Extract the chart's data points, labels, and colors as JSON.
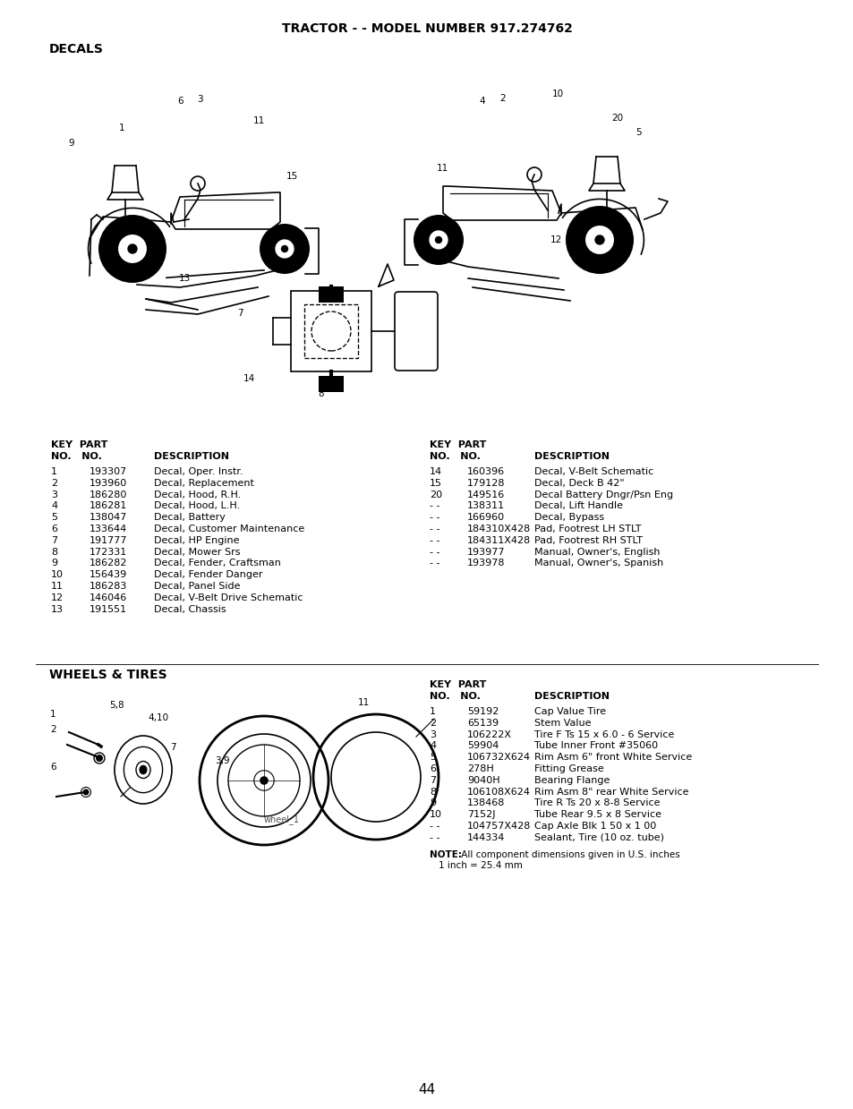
{
  "title": "TRACTOR - - MODEL NUMBER 917.274762",
  "section1": "DECALS",
  "section2": "WHEELS & TIRES",
  "bg_color": "#ffffff",
  "decals_left": [
    [
      "1",
      "193307",
      "Decal, Oper. Instr."
    ],
    [
      "2",
      "193960",
      "Decal, Replacement"
    ],
    [
      "3",
      "186280",
      "Decal, Hood, R.H."
    ],
    [
      "4",
      "186281",
      "Decal, Hood, L.H."
    ],
    [
      "5",
      "138047",
      "Decal, Battery"
    ],
    [
      "6",
      "133644",
      "Decal, Customer Maintenance"
    ],
    [
      "7",
      "191777",
      "Decal, HP Engine"
    ],
    [
      "8",
      "172331",
      "Decal, Mower Srs"
    ],
    [
      "9",
      "186282",
      "Decal, Fender, Craftsman"
    ],
    [
      "10",
      "156439",
      "Decal, Fender Danger"
    ],
    [
      "11",
      "186283",
      "Decal, Panel Side"
    ],
    [
      "12",
      "146046",
      "Decal, V-Belt Drive Schematic"
    ],
    [
      "13",
      "191551",
      "Decal, Chassis"
    ]
  ],
  "decals_right": [
    [
      "14",
      "160396",
      "Decal, V-Belt Schematic"
    ],
    [
      "15",
      "179128",
      "Decal, Deck B 42\""
    ],
    [
      "20",
      "149516",
      "Decal Battery Dngr/Psn Eng"
    ],
    [
      "- -",
      "138311",
      "Decal, Lift Handle"
    ],
    [
      "- -",
      "166960",
      "Decal, Bypass"
    ],
    [
      "- -",
      "184310X428",
      "Pad, Footrest LH STLT"
    ],
    [
      "- -",
      "184311X428",
      "Pad, Footrest RH STLT"
    ],
    [
      "- -",
      "193977",
      "Manual, Owner's, English"
    ],
    [
      "- -",
      "193978",
      "Manual, Owner's, Spanish"
    ]
  ],
  "wheels_data": [
    [
      "1",
      "59192",
      "Cap Value Tire"
    ],
    [
      "2",
      "65139",
      "Stem Value"
    ],
    [
      "3",
      "106222X",
      "Tire F Ts 15 x 6.0 - 6 Service"
    ],
    [
      "4",
      "59904",
      "Tube Inner Front #35060"
    ],
    [
      "5",
      "106732X624",
      "Rim Asm 6\" front White Service"
    ],
    [
      "6",
      "278H",
      "Fitting Grease"
    ],
    [
      "7",
      "9040H",
      "Bearing Flange"
    ],
    [
      "8",
      "106108X624",
      "Rim Asm 8\" rear White Service"
    ],
    [
      "9",
      "138468",
      "Tire R Ts 20 x 8-8 Service"
    ],
    [
      "10",
      "7152J",
      "Tube Rear 9.5 x 8 Service"
    ],
    [
      "- -",
      "104757X428",
      "Cap Axle Blk 1 50 x 1 00"
    ],
    [
      "- -",
      "144334",
      "Sealant, Tire (10 oz. tube)"
    ]
  ],
  "page_number": "44"
}
